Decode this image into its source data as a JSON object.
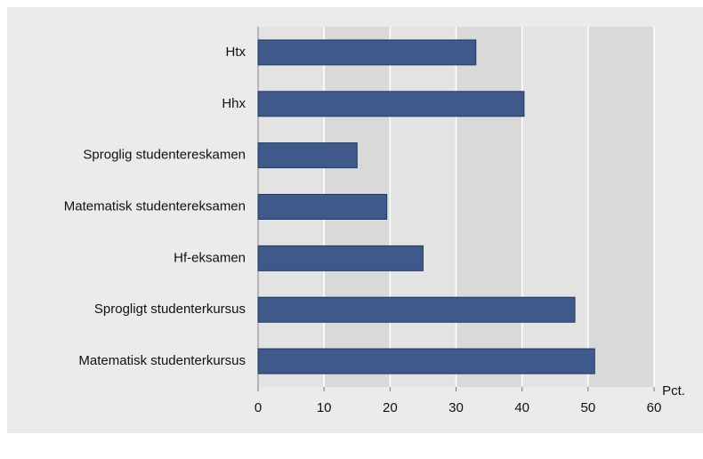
{
  "chart_data": {
    "type": "bar",
    "orientation": "horizontal",
    "categories": [
      "Htx",
      "Hhx",
      "Sproglig studentereskamen",
      "Matematisk studentereksamen",
      "Hf-eksamen",
      "Sprogligt studenterkursus",
      "Matematisk studenterkursus"
    ],
    "values": [
      33,
      40.3,
      15,
      19.5,
      25,
      48,
      51
    ],
    "color": "#3f5a8a",
    "x_label": "Pct.",
    "xlim": [
      0,
      60
    ],
    "xticks": [
      0,
      10,
      20,
      30,
      40,
      50,
      60
    ],
    "grid": true
  }
}
